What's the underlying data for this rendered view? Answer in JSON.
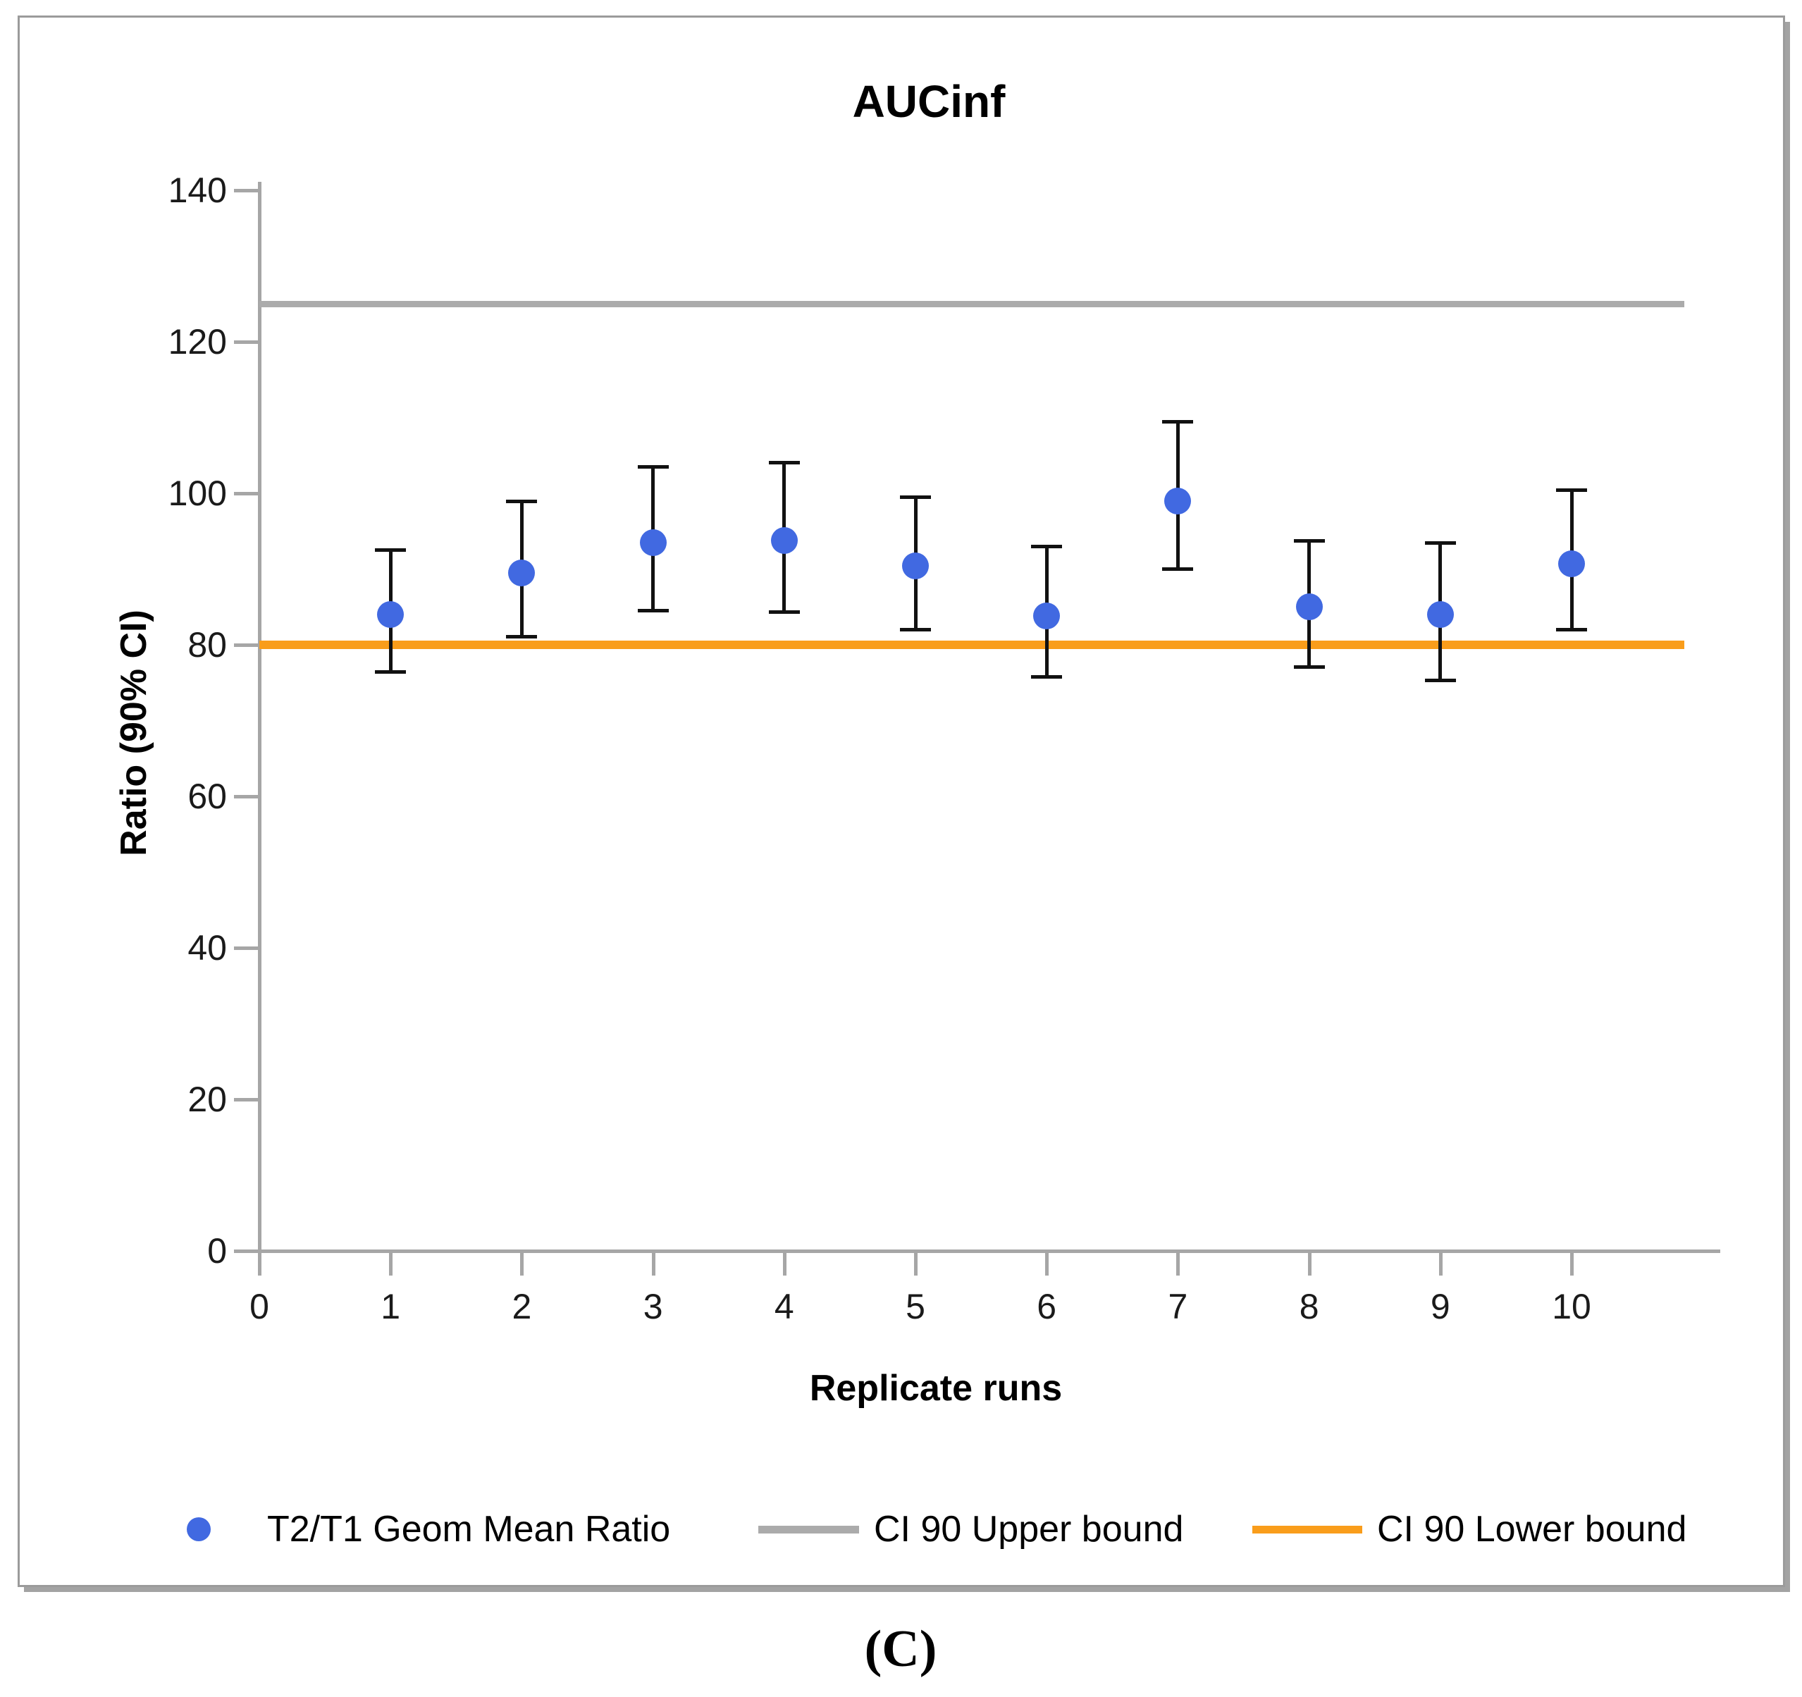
{
  "figure": {
    "caption": "(C)"
  },
  "chart_data": {
    "type": "scatter",
    "title": "AUCinf",
    "xlabel": "Replicate runs",
    "ylabel": "Ratio (90% CI)",
    "x": [
      1,
      2,
      3,
      4,
      5,
      6,
      7,
      8,
      9,
      10
    ],
    "x_ticks": [
      0,
      1,
      2,
      3,
      4,
      5,
      6,
      7,
      8,
      9,
      10
    ],
    "y_ticks": [
      0,
      20,
      40,
      60,
      80,
      100,
      120,
      140
    ],
    "xlim": [
      0,
      11.1
    ],
    "ylim": [
      0,
      140
    ],
    "grid": false,
    "legend_position": "bottom",
    "series": [
      {
        "name": "T2/T1 Geom Mean Ratio",
        "type": "scatter-with-error-bars",
        "color": "#4169e1",
        "values": [
          84.0,
          89.5,
          93.5,
          93.8,
          90.4,
          83.8,
          99.0,
          85.0,
          84.0,
          90.7
        ],
        "err_low": [
          76.4,
          81.0,
          84.5,
          84.3,
          82.0,
          75.7,
          90.0,
          77.0,
          75.3,
          82.0
        ],
        "err_high": [
          92.6,
          99.0,
          103.5,
          104.1,
          99.5,
          93.0,
          109.5,
          93.8,
          93.5,
          100.5
        ]
      },
      {
        "name": "CI 90 Upper bound",
        "type": "hline",
        "color": "#ababab",
        "value": 125
      },
      {
        "name": "CI 90 Lower bound",
        "type": "hline",
        "color": "#f99d1b",
        "value": 80
      }
    ]
  }
}
